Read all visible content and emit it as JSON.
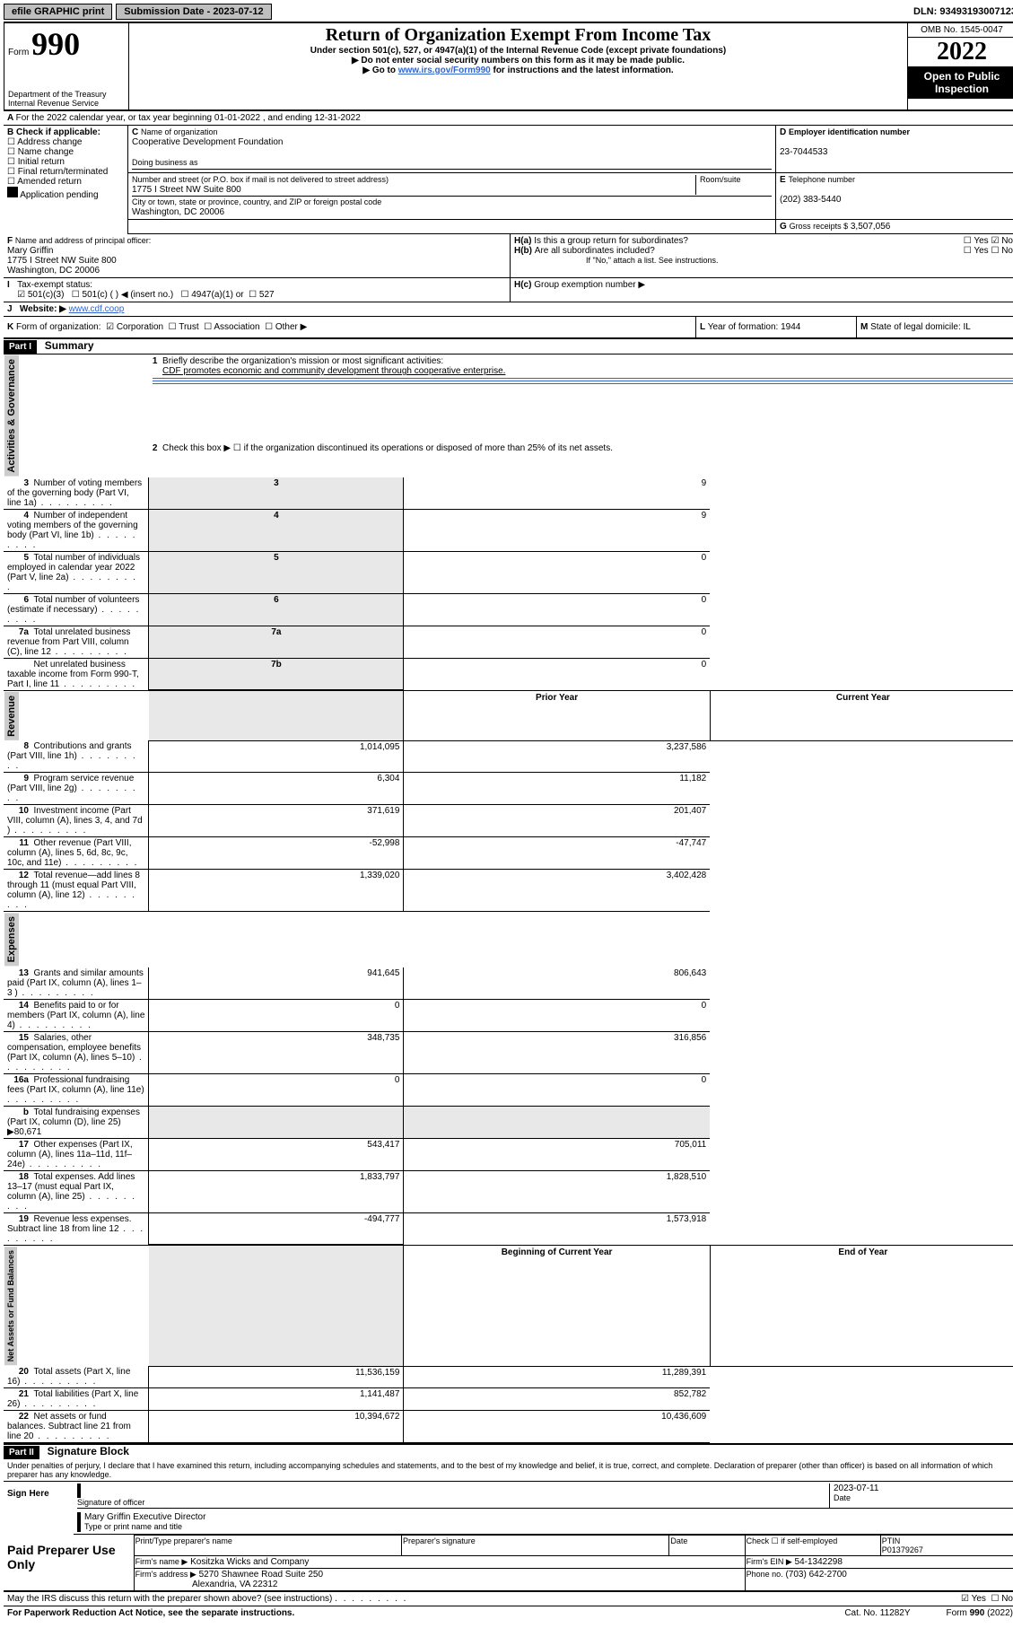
{
  "top": {
    "efile": "efile GRAPHIC print",
    "sub_lbl": "Submission Date - 2023-07-12",
    "dln": "DLN: 93493193007123"
  },
  "header": {
    "form_prefix": "Form",
    "form_no": "990",
    "dept": "Department of the Treasury",
    "irs": "Internal Revenue Service",
    "title": "Return of Organization Exempt From Income Tax",
    "subtitle": "Under section 501(c), 527, or 4947(a)(1) of the Internal Revenue Code (except private foundations)",
    "note1": "Do not enter social security numbers on this form as it may be made public.",
    "note2_pre": "Go to ",
    "note2_link": "www.irs.gov/Form990",
    "note2_post": " for instructions and the latest information.",
    "omb": "OMB No. 1545-0047",
    "year": "2022",
    "open": "Open to Public Inspection"
  },
  "A": {
    "text": "For the 2022 calendar year, or tax year beginning 01-01-2022       , and ending 12-31-2022"
  },
  "B": {
    "title": "Check if applicable:",
    "opts": [
      "Address change",
      "Name change",
      "Initial return",
      "Final return/terminated",
      "Amended return",
      "Application pending"
    ]
  },
  "C": {
    "name_lbl": "Name of organization",
    "name": "Cooperative Development Foundation",
    "dba_lbl": "Doing business as",
    "addr_lbl": "Number and street (or P.O. box if mail is not delivered to street address)",
    "room_lbl": "Room/suite",
    "addr": "1775 I Street NW Suite 800",
    "city_lbl": "City or town, state or province, country, and ZIP or foreign postal code",
    "city": "Washington, DC  20006"
  },
  "D": {
    "lbl": "Employer identification number",
    "val": "23-7044533"
  },
  "E": {
    "lbl": "Telephone number",
    "val": "(202) 383-5440"
  },
  "G": {
    "lbl": "Gross receipts $",
    "val": "3,507,056"
  },
  "F": {
    "lbl": "Name and address of principal officer:",
    "name": "Mary Griffin",
    "addr1": "1775 I Street NW Suite 800",
    "addr2": "Washington, DC  20006"
  },
  "H": {
    "a": "Is this a group return for subordinates?",
    "b": "Are all subordinates included?",
    "note": "If \"No,\" attach a list. See instructions.",
    "c": "Group exemption number ▶"
  },
  "I": {
    "lbl": "Tax-exempt status:",
    "o1": "501(c)(3)",
    "o2": "501(c) (   ) ◀ (insert no.)",
    "o3": "4947(a)(1) or",
    "o4": "527"
  },
  "J": {
    "lbl": "Website: ▶",
    "val": "www.cdf.coop"
  },
  "K": {
    "lbl": "Form of organization:",
    "o1": "Corporation",
    "o2": "Trust",
    "o3": "Association",
    "o4": "Other ▶"
  },
  "L": {
    "lbl": "Year of formation:",
    "val": "1944"
  },
  "M": {
    "lbl": "State of legal domicile:",
    "val": "IL"
  },
  "part1": {
    "bar": "Part I",
    "title": "Summary",
    "l1_lbl": "Briefly describe the organization's mission or most significant activities:",
    "l1_val": "CDF promotes economic and community development through cooperative enterprise.",
    "l2": "Check this box ▶ ☐  if the organization discontinued its operations or disposed of more than 25% of its net assets.",
    "rows_ag": [
      {
        "n": "3",
        "t": "Number of voting members of the governing body (Part VI, line 1a)",
        "box": "3",
        "v": "9"
      },
      {
        "n": "4",
        "t": "Number of independent voting members of the governing body (Part VI, line 1b)",
        "box": "4",
        "v": "9"
      },
      {
        "n": "5",
        "t": "Total number of individuals employed in calendar year 2022 (Part V, line 2a)",
        "box": "5",
        "v": "0"
      },
      {
        "n": "6",
        "t": "Total number of volunteers (estimate if necessary)",
        "box": "6",
        "v": "0"
      },
      {
        "n": "7a",
        "t": "Total unrelated business revenue from Part VIII, column (C), line 12",
        "box": "7a",
        "v": "0"
      },
      {
        "n": "",
        "t": "Net unrelated business taxable income from Form 990-T, Part I, line 11",
        "box": "7b",
        "v": "0"
      }
    ],
    "col_prior": "Prior Year",
    "col_current": "Current Year",
    "rows_rev": [
      {
        "n": "8",
        "t": "Contributions and grants (Part VIII, line 1h)",
        "p": "1,014,095",
        "c": "3,237,586"
      },
      {
        "n": "9",
        "t": "Program service revenue (Part VIII, line 2g)",
        "p": "6,304",
        "c": "11,182"
      },
      {
        "n": "10",
        "t": "Investment income (Part VIII, column (A), lines 3, 4, and 7d )",
        "p": "371,619",
        "c": "201,407"
      },
      {
        "n": "11",
        "t": "Other revenue (Part VIII, column (A), lines 5, 6d, 8c, 9c, 10c, and 11e)",
        "p": "-52,998",
        "c": "-47,747"
      },
      {
        "n": "12",
        "t": "Total revenue—add lines 8 through 11 (must equal Part VIII, column (A), line 12)",
        "p": "1,339,020",
        "c": "3,402,428"
      }
    ],
    "rows_exp": [
      {
        "n": "13",
        "t": "Grants and similar amounts paid (Part IX, column (A), lines 1–3 )",
        "p": "941,645",
        "c": "806,643"
      },
      {
        "n": "14",
        "t": "Benefits paid to or for members (Part IX, column (A), line 4)",
        "p": "0",
        "c": "0"
      },
      {
        "n": "15",
        "t": "Salaries, other compensation, employee benefits (Part IX, column (A), lines 5–10)",
        "p": "348,735",
        "c": "316,856"
      },
      {
        "n": "16a",
        "t": "Professional fundraising fees (Part IX, column (A), line 11e)",
        "p": "0",
        "c": "0"
      },
      {
        "n": "b",
        "t": "Total fundraising expenses (Part IX, column (D), line 25) ▶80,671",
        "p": "",
        "c": "",
        "shade": true
      },
      {
        "n": "17",
        "t": "Other expenses (Part IX, column (A), lines 11a–11d, 11f–24e)",
        "p": "543,417",
        "c": "705,011"
      },
      {
        "n": "18",
        "t": "Total expenses. Add lines 13–17 (must equal Part IX, column (A), line 25)",
        "p": "1,833,797",
        "c": "1,828,510"
      },
      {
        "n": "19",
        "t": "Revenue less expenses. Subtract line 18 from line 12",
        "p": "-494,777",
        "c": "1,573,918"
      }
    ],
    "col_begin": "Beginning of Current Year",
    "col_end": "End of Year",
    "rows_na": [
      {
        "n": "20",
        "t": "Total assets (Part X, line 16)",
        "p": "11,536,159",
        "c": "11,289,391"
      },
      {
        "n": "21",
        "t": "Total liabilities (Part X, line 26)",
        "p": "1,141,487",
        "c": "852,782"
      },
      {
        "n": "22",
        "t": "Net assets or fund balances. Subtract line 21 from line 20",
        "p": "10,394,672",
        "c": "10,436,609"
      }
    ],
    "vtext_ag": "Activities & Governance",
    "vtext_rev": "Revenue",
    "vtext_exp": "Expenses",
    "vtext_na": "Net Assets or Fund Balances"
  },
  "part2": {
    "bar": "Part II",
    "title": "Signature Block",
    "decl": "Under penalties of perjury, I declare that I have examined this return, including accompanying schedules and statements, and to the best of my knowledge and belief, it is true, correct, and complete. Declaration of preparer (other than officer) is based on all information of which preparer has any knowledge.",
    "sign_here": "Sign Here",
    "sig_officer": "Signature of officer",
    "sig_date": "2023-07-11",
    "date_lbl": "Date",
    "officer_name": "Mary Griffin  Executive Director",
    "officer_title_lbl": "Type or print name and title",
    "paid": "Paid Preparer Use Only",
    "prep_name_lbl": "Print/Type preparer's name",
    "prep_sig_lbl": "Preparer's signature",
    "prep_date_lbl": "Date",
    "check_se": "Check ☐ if self-employed",
    "ptin_lbl": "PTIN",
    "ptin": "P01379267",
    "firm_name_lbl": "Firm's name      ▶",
    "firm_name": "Kositzka Wicks and Company",
    "firm_ein_lbl": "Firm's EIN ▶",
    "firm_ein": "54-1342298",
    "firm_addr_lbl": "Firm's address ▶",
    "firm_addr1": "5270 Shawnee Road Suite 250",
    "firm_addr2": "Alexandria, VA  22312",
    "phone_lbl": "Phone no.",
    "phone": "(703) 642-2700",
    "discuss": "May the IRS discuss this return with the preparer shown above? (see instructions)",
    "paperwork": "For Paperwork Reduction Act Notice, see the separate instructions.",
    "cat": "Cat. No. 11282Y",
    "formfoot": "Form 990 (2022)"
  },
  "style": {
    "link_color": "#3366cc",
    "shade_color": "#e8e8e8",
    "bar_bg": "#000000",
    "bar_fg": "#ffffff"
  }
}
